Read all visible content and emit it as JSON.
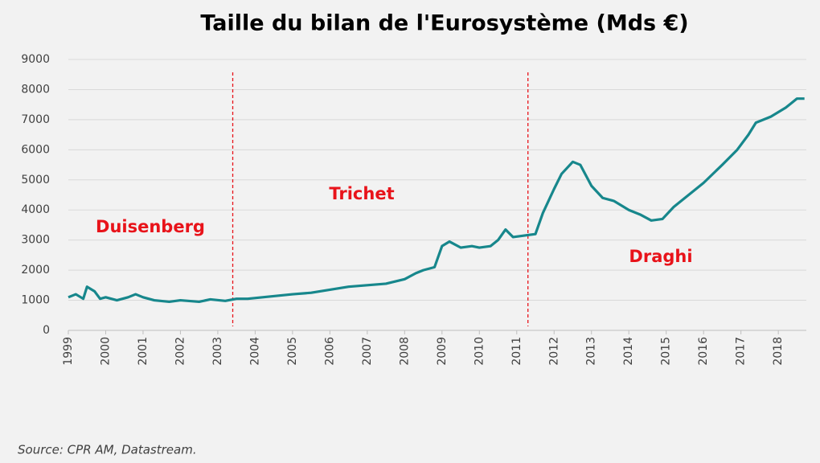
{
  "chart_data": {
    "type": "line",
    "title": "Taille du bilan de l'Eurosystème (Mds €)",
    "x": [
      1999.0,
      1999.2,
      1999.4,
      1999.5,
      1999.7,
      1999.85,
      2000.0,
      2000.3,
      2000.6,
      2000.8,
      2001.0,
      2001.3,
      2001.7,
      2002.0,
      2002.5,
      2002.8,
      2003.2,
      2003.5,
      2003.8,
      2004.2,
      2004.6,
      2005.0,
      2005.5,
      2006.0,
      2006.5,
      2007.0,
      2007.5,
      2008.0,
      2008.3,
      2008.5,
      2008.8,
      2009.0,
      2009.2,
      2009.5,
      2009.8,
      2010.0,
      2010.3,
      2010.5,
      2010.7,
      2010.9,
      2011.2,
      2011.5,
      2011.7,
      2012.0,
      2012.2,
      2012.5,
      2012.7,
      2013.0,
      2013.3,
      2013.6,
      2014.0,
      2014.3,
      2014.6,
      2014.9,
      2015.2,
      2015.6,
      2016.0,
      2016.5,
      2016.9,
      2017.2,
      2017.4,
      2017.8,
      2018.2,
      2018.5,
      2018.7
    ],
    "series": [
      {
        "color": "#17878c",
        "values": [
          1100,
          1200,
          1050,
          1450,
          1300,
          1050,
          1100,
          1000,
          1100,
          1200,
          1100,
          1000,
          950,
          1000,
          950,
          1030,
          980,
          1050,
          1050,
          1100,
          1150,
          1200,
          1250,
          1350,
          1450,
          1500,
          1550,
          1700,
          1900,
          2000,
          2100,
          2800,
          2950,
          2750,
          2800,
          2750,
          2800,
          3000,
          3350,
          3100,
          3150,
          3200,
          3900,
          4700,
          5200,
          5600,
          5500,
          4800,
          4400,
          4300,
          4000,
          3850,
          3650,
          3700,
          4100,
          4500,
          4900,
          5500,
          6000,
          6500,
          6900,
          7100,
          7400,
          7700,
          7700
        ]
      }
    ],
    "xlim": [
      1999,
      2018.75
    ],
    "xticks": [
      1999,
      2000,
      2001,
      2002,
      2003,
      2004,
      2005,
      2006,
      2007,
      2008,
      2009,
      2010,
      2011,
      2012,
      2013,
      2014,
      2015,
      2016,
      2017,
      2018
    ],
    "ylim": [
      0,
      9000
    ],
    "yticks": [
      0,
      1000,
      2000,
      3000,
      4000,
      5000,
      6000,
      7000,
      8000,
      9000
    ],
    "grid": true,
    "markers": [
      2003.4,
      2011.3
    ],
    "annotations": [
      "Duisenberg",
      "Trichet",
      "Draghi"
    ],
    "source": "Source: CPR AM, Datastream."
  }
}
